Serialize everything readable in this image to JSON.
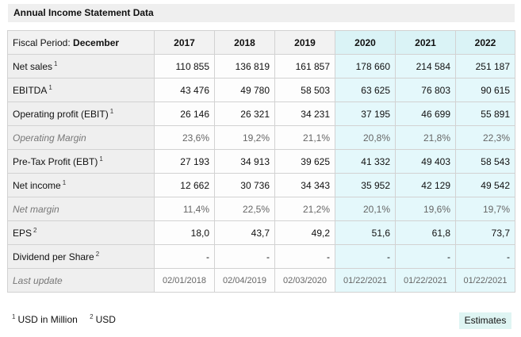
{
  "title": "Annual Income Statement Data",
  "header": {
    "fiscal_label": "Fiscal Period:",
    "fiscal_value": "December",
    "years": [
      "2017",
      "2018",
      "2019",
      "2020",
      "2021",
      "2022"
    ],
    "estimate_columns": [
      "2020",
      "2021",
      "2022"
    ]
  },
  "rows": [
    {
      "label": "Net sales",
      "note": "1",
      "values": [
        "110 855",
        "136 819",
        "161 857",
        "178 660",
        "214 584",
        "251 187"
      ]
    },
    {
      "label": "EBITDA",
      "note": "1",
      "values": [
        "43 476",
        "49 780",
        "58 503",
        "63 625",
        "76 803",
        "90 615"
      ]
    },
    {
      "label": "Operating profit (EBIT)",
      "note": "1",
      "values": [
        "26 146",
        "26 321",
        "34 231",
        "37 195",
        "46 699",
        "55 891"
      ]
    },
    {
      "label": "Operating Margin",
      "note": "",
      "values": [
        "23,6%",
        "19,2%",
        "21,1%",
        "20,8%",
        "21,8%",
        "22,3%"
      ]
    },
    {
      "label": "Pre-Tax Profit (EBT)",
      "note": "1",
      "values": [
        "27 193",
        "34 913",
        "39 625",
        "41 332",
        "49 403",
        "58 543"
      ]
    },
    {
      "label": "Net income",
      "note": "1",
      "values": [
        "12 662",
        "30 736",
        "34 343",
        "35 952",
        "42 129",
        "49 542"
      ]
    },
    {
      "label": "Net margin",
      "note": "",
      "values": [
        "11,4%",
        "22,5%",
        "21,2%",
        "20,1%",
        "19,6%",
        "19,7%"
      ]
    },
    {
      "label": "EPS",
      "note": "2",
      "values": [
        "18,0",
        "43,7",
        "49,2",
        "51,6",
        "61,8",
        "73,7"
      ]
    },
    {
      "label": "Dividend per Share",
      "note": "2",
      "values": [
        "-",
        "-",
        "-",
        "-",
        "-",
        "-"
      ]
    },
    {
      "label": "Last update",
      "note": "",
      "values": [
        "02/01/2018",
        "02/04/2019",
        "02/03/2020",
        "01/22/2021",
        "01/22/2021",
        "01/22/2021"
      ]
    }
  ],
  "footnotes": [
    {
      "mark": "1",
      "text": "USD in Million"
    },
    {
      "mark": "2",
      "text": "USD"
    }
  ],
  "estimates_label": "Estimates",
  "colors": {
    "estimate_background": "#e4f8fb",
    "label_background": "#efefef",
    "header_background": "#f2f2f2"
  }
}
